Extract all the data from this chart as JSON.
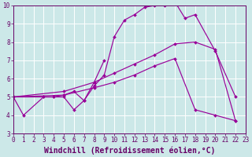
{
  "xlabel": "Windchill (Refroidissement éolien,°C)",
  "xlim": [
    0,
    23
  ],
  "ylim": [
    3,
    10
  ],
  "xticks": [
    0,
    1,
    2,
    3,
    4,
    5,
    6,
    7,
    8,
    9,
    10,
    11,
    12,
    13,
    14,
    15,
    16,
    17,
    18,
    19,
    20,
    21,
    22,
    23
  ],
  "yticks": [
    3,
    4,
    5,
    6,
    7,
    8,
    9,
    10
  ],
  "bg_color": "#cce8e8",
  "line_color": "#990099",
  "grid_color": "#ffffff",
  "series1_x": [
    0,
    1,
    3,
    4,
    5,
    6,
    7,
    8,
    9
  ],
  "series1_y": [
    5.0,
    4.0,
    5.0,
    5.0,
    5.0,
    4.3,
    4.8,
    5.8,
    7.0
  ],
  "series2_x": [
    0,
    3,
    4,
    5,
    6,
    7,
    8,
    9,
    10,
    11,
    12,
    13,
    14,
    15,
    16,
    17,
    18,
    20,
    22
  ],
  "series2_y": [
    5.0,
    5.0,
    5.0,
    5.1,
    5.3,
    4.8,
    5.6,
    6.2,
    8.3,
    9.2,
    9.5,
    9.9,
    10.0,
    10.0,
    10.2,
    9.3,
    9.5,
    7.5,
    5.0
  ],
  "series3_x": [
    0,
    5,
    8,
    10,
    12,
    14,
    16,
    18,
    20,
    22
  ],
  "series3_y": [
    5.0,
    5.3,
    5.8,
    6.3,
    6.8,
    7.3,
    7.9,
    8.0,
    7.6,
    3.7
  ],
  "series4_x": [
    0,
    5,
    8,
    10,
    12,
    14,
    16,
    18,
    20,
    22
  ],
  "series4_y": [
    5.0,
    5.1,
    5.5,
    5.8,
    6.2,
    6.7,
    7.1,
    4.3,
    4.0,
    3.7
  ],
  "font_color": "#660066",
  "tick_fontsize": 5.5,
  "label_fontsize": 7.0
}
